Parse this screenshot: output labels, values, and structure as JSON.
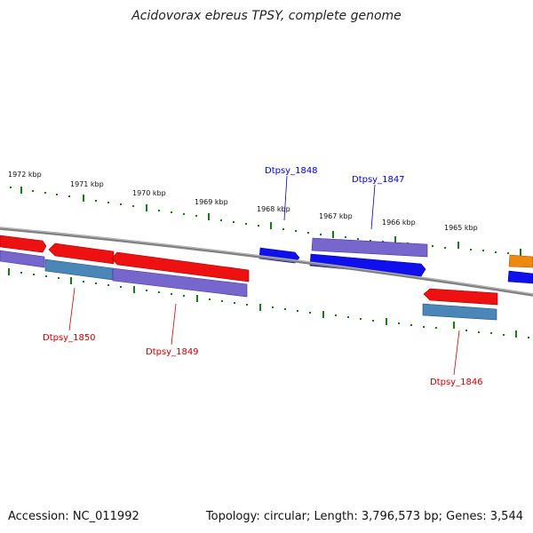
{
  "title": "Acidovorax ebreus TPSY, complete genome",
  "footer": {
    "accession": "Accession: NC_011992",
    "summary": "Topology: circular; Length: 3,796,573 bp; Genes: 3,544"
  },
  "colors": {
    "backbone": "#808080",
    "ticks": "#1a7a1a",
    "red_gene": "#ee1111",
    "blue_gene": "#1010ee",
    "purple_gene": "#7766cc",
    "steel_gene": "#4a86b8",
    "orange_gene": "#ee8811",
    "label_blue": "#0000cc",
    "label_red": "#cc0000"
  },
  "kbp_labels": [
    "1972 kbp",
    "1971 kbp",
    "1970 kbp",
    "1969 kbp",
    "1968 kbp",
    "1967 kbp",
    "1966 kbp",
    "1965 kbp"
  ],
  "gene_labels": [
    "Dtpsy_1848",
    "Dtpsy_1847",
    "Dtpsy_1850",
    "Dtpsy_1849",
    "Dtpsy_1846"
  ]
}
